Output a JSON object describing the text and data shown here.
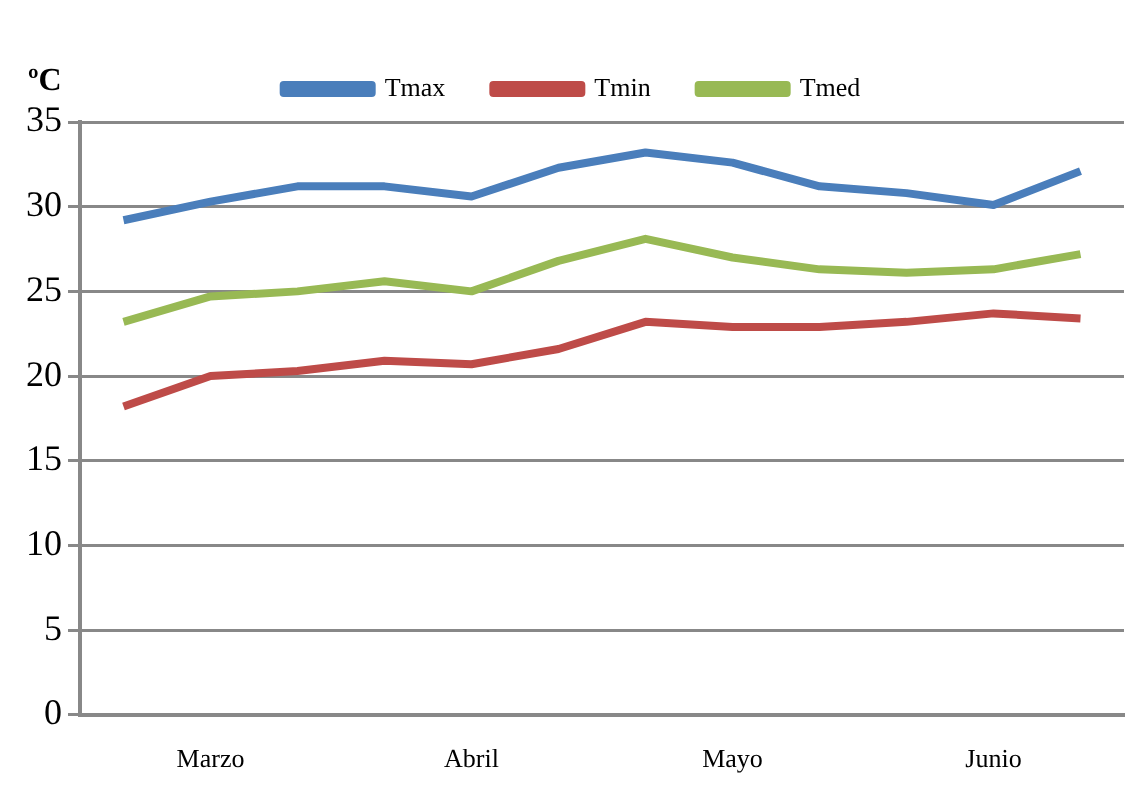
{
  "chart_data": {
    "type": "line",
    "ylabel": "ºC",
    "categories": [
      null,
      "Marzo",
      null,
      null,
      "Abril",
      null,
      null,
      "Mayo",
      null,
      null,
      "Junio",
      null
    ],
    "series": [
      {
        "name": "Tmax",
        "color": "#4a7ebb",
        "values": [
          29.2,
          30.3,
          31.2,
          31.2,
          30.6,
          32.3,
          33.2,
          32.6,
          31.2,
          30.8,
          30.1,
          32.1
        ]
      },
      {
        "name": "Tmin",
        "color": "#be4b48",
        "values": [
          18.2,
          20.0,
          20.3,
          20.9,
          20.7,
          21.6,
          23.2,
          22.9,
          22.9,
          23.2,
          23.7,
          23.4
        ]
      },
      {
        "name": "Tmed",
        "color": "#98b954",
        "values": [
          23.2,
          24.7,
          25.0,
          25.6,
          25.0,
          26.8,
          28.1,
          27.0,
          26.3,
          26.1,
          26.3,
          27.2
        ]
      }
    ],
    "ylim": [
      0,
      35
    ],
    "yticks": [
      0,
      5,
      10,
      15,
      20,
      25,
      30,
      35
    ],
    "grid": "y",
    "legend": "top",
    "marker": "none",
    "line_style": "solid"
  }
}
